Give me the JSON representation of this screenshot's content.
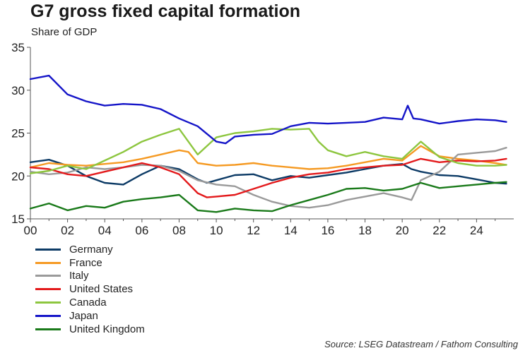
{
  "title": "G7 gross fixed capital formation",
  "subtitle": "Share of GDP",
  "source": "Source: LSEG Datastream / Fathom Consulting",
  "chart_data": {
    "type": "line",
    "y_ticks": [
      "35",
      "30",
      "25",
      "20",
      "15"
    ],
    "x_ticks": [
      "00",
      "02",
      "04",
      "06",
      "08",
      "10",
      "12",
      "14",
      "16",
      "18",
      "20",
      "22",
      "24"
    ],
    "xlim": [
      2000,
      2026
    ],
    "ylim": [
      15,
      35
    ],
    "grid": false,
    "legend_position": "bottom-left",
    "series": [
      {
        "name": "Germany",
        "color": "#0d3b66",
        "x": [
          2000,
          2001,
          2002,
          2003,
          2004,
          2005,
          2006,
          2007,
          2008,
          2009,
          2009.5,
          2010,
          2011,
          2012,
          2013,
          2014,
          2015,
          2016,
          2017,
          2018,
          2019,
          2020,
          2020.5,
          2021,
          2022,
          2023,
          2024,
          2025,
          2025.6
        ],
        "values": [
          21.6,
          21.9,
          21.2,
          20.0,
          19.2,
          19.0,
          20.2,
          21.2,
          20.8,
          19.6,
          19.2,
          19.5,
          20.1,
          20.2,
          19.5,
          20.0,
          19.8,
          20.1,
          20.4,
          20.8,
          21.2,
          21.4,
          20.8,
          20.5,
          20.1,
          20.0,
          19.6,
          19.2,
          19.1
        ]
      },
      {
        "name": "France",
        "color": "#f59a23",
        "x": [
          2000,
          2001,
          2002,
          2003,
          2004,
          2005,
          2006,
          2007,
          2008,
          2008.5,
          2009,
          2010,
          2011,
          2012,
          2013,
          2014,
          2015,
          2016,
          2017,
          2018,
          2019,
          2020,
          2021,
          2022,
          2023,
          2024,
          2025,
          2025.6
        ],
        "values": [
          21.0,
          21.5,
          21.3,
          21.2,
          21.4,
          21.6,
          22.0,
          22.5,
          23.0,
          22.8,
          21.5,
          21.2,
          21.3,
          21.5,
          21.2,
          21.0,
          20.8,
          20.9,
          21.2,
          21.6,
          22.0,
          21.8,
          23.5,
          22.3,
          22.0,
          21.8,
          21.5,
          21.3
        ]
      },
      {
        "name": "Italy",
        "color": "#9a9a9a",
        "x": [
          2000,
          2001,
          2002,
          2003,
          2004,
          2005,
          2006,
          2007,
          2008,
          2009,
          2010,
          2011,
          2012,
          2013,
          2014,
          2015,
          2016,
          2017,
          2018,
          2019,
          2020,
          2020.5,
          2021,
          2022,
          2023,
          2024,
          2025,
          2025.6
        ],
        "values": [
          20.5,
          20.2,
          20.4,
          21.0,
          20.8,
          21.0,
          21.3,
          21.2,
          20.6,
          19.5,
          19.0,
          18.8,
          17.8,
          17.0,
          16.5,
          16.3,
          16.6,
          17.2,
          17.6,
          18.0,
          17.5,
          17.2,
          19.5,
          20.5,
          22.5,
          22.7,
          22.9,
          23.3
        ]
      },
      {
        "name": "United States",
        "color": "#e31a1c",
        "x": [
          2000,
          2001,
          2002,
          2003,
          2004,
          2005,
          2006,
          2007,
          2008,
          2009,
          2009.5,
          2010,
          2011,
          2012,
          2013,
          2014,
          2015,
          2016,
          2017,
          2018,
          2019,
          2020,
          2021,
          2022,
          2023,
          2024,
          2025,
          2025.6
        ],
        "values": [
          21.0,
          20.8,
          20.2,
          20.0,
          20.5,
          21.0,
          21.5,
          21.0,
          20.2,
          18.0,
          17.5,
          17.6,
          17.8,
          18.5,
          19.2,
          19.8,
          20.2,
          20.4,
          20.8,
          21.0,
          21.2,
          21.3,
          22.0,
          21.6,
          21.8,
          21.7,
          21.8,
          22.0
        ]
      },
      {
        "name": "Canada",
        "color": "#8dc63f",
        "x": [
          2000,
          2001,
          2002,
          2003,
          2004,
          2005,
          2006,
          2007,
          2008,
          2009,
          2009.5,
          2010,
          2011,
          2012,
          2013,
          2014,
          2015,
          2015.5,
          2016,
          2017,
          2018,
          2019,
          2020,
          2021,
          2022,
          2023,
          2024,
          2025,
          2025.6
        ],
        "values": [
          20.3,
          20.6,
          21.2,
          20.8,
          21.8,
          22.8,
          24.0,
          24.8,
          25.5,
          22.5,
          23.5,
          24.5,
          25.0,
          25.2,
          25.5,
          25.4,
          25.5,
          24.0,
          23.0,
          22.3,
          22.8,
          22.3,
          22.0,
          24.0,
          22.2,
          21.5,
          21.2,
          21.2,
          21.3
        ]
      },
      {
        "name": "Japan",
        "color": "#1515c8",
        "x": [
          2000,
          2001,
          2002,
          2003,
          2004,
          2005,
          2006,
          2007,
          2008,
          2009,
          2010,
          2010.5,
          2011,
          2012,
          2013,
          2014,
          2015,
          2016,
          2017,
          2018,
          2019,
          2020,
          2020.3,
          2020.6,
          2021,
          2022,
          2023,
          2024,
          2025,
          2025.6
        ],
        "values": [
          31.3,
          31.7,
          29.5,
          28.7,
          28.2,
          28.4,
          28.3,
          27.8,
          26.7,
          25.8,
          24.0,
          23.8,
          24.6,
          24.8,
          24.9,
          25.8,
          26.2,
          26.1,
          26.2,
          26.3,
          26.8,
          26.6,
          28.2,
          26.7,
          26.6,
          26.1,
          26.4,
          26.6,
          26.5,
          26.3
        ]
      },
      {
        "name": "United Kingdom",
        "color": "#1a7a1a",
        "x": [
          2000,
          2001,
          2002,
          2003,
          2004,
          2005,
          2006,
          2007,
          2008,
          2009,
          2010,
          2011,
          2012,
          2013,
          2014,
          2015,
          2016,
          2017,
          2018,
          2019,
          2020,
          2021,
          2022,
          2023,
          2024,
          2025,
          2025.6
        ],
        "values": [
          16.2,
          16.8,
          16.0,
          16.5,
          16.3,
          17.0,
          17.3,
          17.5,
          17.8,
          16.0,
          15.8,
          16.2,
          16.0,
          15.9,
          16.6,
          17.2,
          17.8,
          18.5,
          18.6,
          18.3,
          18.5,
          19.2,
          18.6,
          18.8,
          19.0,
          19.2,
          19.3
        ]
      }
    ]
  }
}
